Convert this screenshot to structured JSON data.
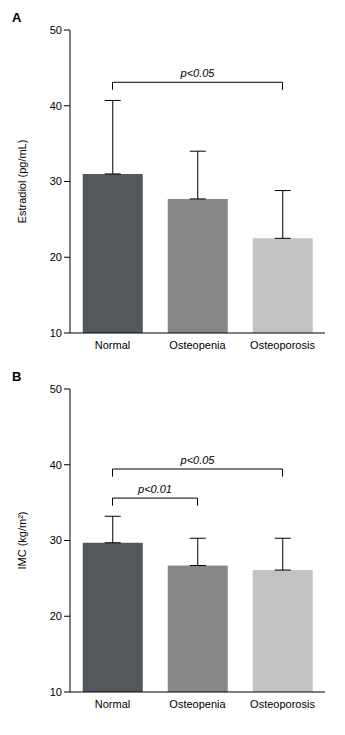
{
  "chart_data": [
    {
      "type": "bar",
      "title": "A",
      "y_label": "Estradiol (pg/mL)",
      "categories": [
        "Normal",
        "Osteopenia",
        "Osteoporosis"
      ],
      "values": [
        31,
        27.7,
        22.5
      ],
      "error": [
        9.7,
        6.3,
        6.3
      ],
      "colors": [
        "#55585a",
        "#868788",
        "#c1c3c4"
      ],
      "ylim": [
        10,
        50
      ],
      "yticks": [
        10,
        20,
        30,
        40,
        50
      ],
      "grid": false,
      "annotations": [
        {
          "text": "p<0.05",
          "from": "Normal",
          "to": "Osteoporosis"
        }
      ]
    },
    {
      "type": "bar",
      "title": "B",
      "y_label": "IMC (kg/m²)",
      "categories": [
        "Normal",
        "Osteopenia",
        "Osteoporosis"
      ],
      "values": [
        29.7,
        26.7,
        26.1
      ],
      "error": [
        3.5,
        3.6,
        4.2
      ],
      "colors": [
        "#55585a",
        "#868788",
        "#c1c3c4"
      ],
      "ylim": [
        10,
        50
      ],
      "yticks": [
        10,
        20,
        30,
        40,
        50
      ],
      "grid": false,
      "annotations": [
        {
          "text": "p<0.01",
          "from": "Normal",
          "to": "Osteopenia"
        },
        {
          "text": "p<0.05",
          "from": "Normal",
          "to": "Osteoporosis"
        }
      ]
    }
  ]
}
